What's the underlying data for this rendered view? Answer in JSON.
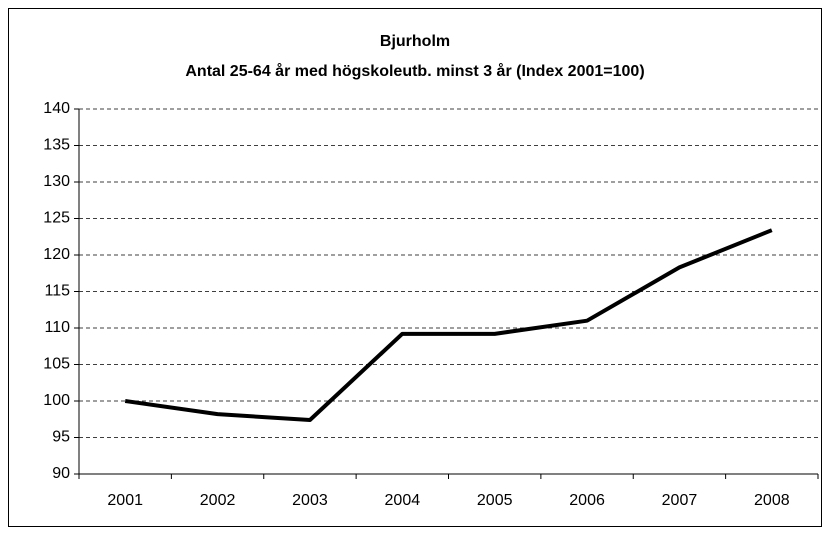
{
  "chart_data": {
    "type": "line",
    "title": "Bjurholm",
    "subtitle": "Antal 25-64 år med högskoleutb. minst 3 år (Index 2001=100)",
    "categories": [
      "2001",
      "2002",
      "2003",
      "2004",
      "2005",
      "2006",
      "2007",
      "2008"
    ],
    "values": [
      100,
      98.2,
      97.4,
      109.2,
      109.2,
      111,
      118.3,
      123.4
    ],
    "color": "#000000",
    "ylim": [
      90,
      140
    ],
    "yticks": [
      90,
      95,
      100,
      105,
      110,
      115,
      120,
      125,
      130,
      135,
      140
    ],
    "grid": true
  }
}
